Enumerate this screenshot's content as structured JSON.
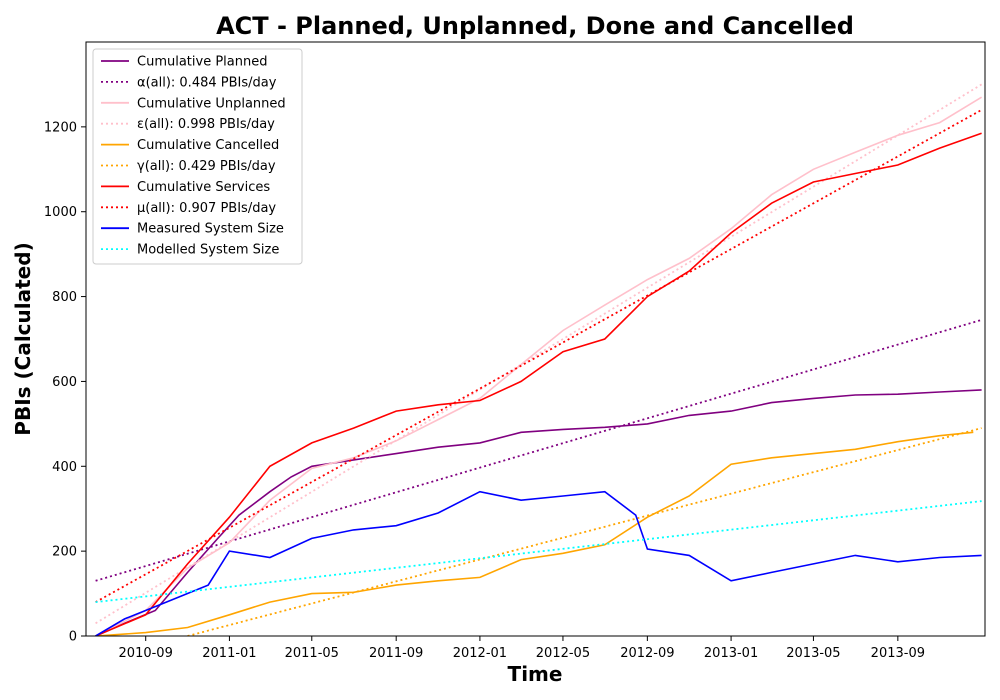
{
  "chart_data": {
    "type": "line",
    "title": "ACT - Planned, Unplanned, Done  and Cancelled",
    "xlabel": "Time",
    "ylabel": "PBIs (Calculated)",
    "x_ticks": [
      "2010-09",
      "2011-01",
      "2011-05",
      "2011-09",
      "2012-01",
      "2012-05",
      "2012-09",
      "2013-01",
      "2013-05",
      "2013-09"
    ],
    "x_tick_values": [
      "2010-09-01",
      "2011-01-01",
      "2011-05-01",
      "2011-09-01",
      "2012-01-01",
      "2012-05-01",
      "2012-09-01",
      "2013-01-01",
      "2013-05-01",
      "2013-09-01"
    ],
    "xlim": [
      "2010-06-06",
      "2014-01-06"
    ],
    "y_ticks": [
      "0",
      "200",
      "400",
      "600",
      "800",
      "1000",
      "1200"
    ],
    "y_tick_values": [
      0,
      200,
      400,
      600,
      800,
      1000,
      1200
    ],
    "ylim": [
      0,
      1400
    ],
    "grid": false,
    "legend_position": "top-left",
    "series": [
      {
        "name": "Cumulative Planned",
        "color": "#800080",
        "style": "solid",
        "x": [
          "2010-06-20",
          "2010-08-01",
          "2010-09-15",
          "2010-11-01",
          "2010-12-15",
          "2011-01-15",
          "2011-03-01",
          "2011-04-01",
          "2011-05-01",
          "2011-07-01",
          "2011-09-01",
          "2011-11-01",
          "2012-01-01",
          "2012-03-01",
          "2012-05-01",
          "2012-07-01",
          "2012-09-01",
          "2012-11-01",
          "2013-01-01",
          "2013-03-01",
          "2013-05-01",
          "2013-07-01",
          "2013-09-01",
          "2013-11-01",
          "2014-01-01"
        ],
        "y": [
          0,
          30,
          60,
          150,
          230,
          285,
          340,
          375,
          400,
          415,
          430,
          445,
          455,
          480,
          487,
          492,
          500,
          520,
          530,
          550,
          560,
          568,
          570,
          575,
          580
        ]
      },
      {
        "name": "α(all): 0.484 PBIs/day",
        "color": "#800080",
        "style": "dotted",
        "x": [
          "2010-06-20",
          "2014-01-01"
        ],
        "y": [
          130,
          745
        ]
      },
      {
        "name": "Cumulative Unplanned",
        "color": "#ffc0cb",
        "style": "solid",
        "x": [
          "2010-06-20",
          "2010-09-01",
          "2010-11-01",
          "2011-01-01",
          "2011-03-01",
          "2011-05-01",
          "2011-07-01",
          "2011-09-01",
          "2011-11-01",
          "2012-01-01",
          "2012-03-01",
          "2012-05-01",
          "2012-07-01",
          "2012-09-01",
          "2012-11-01",
          "2013-01-01",
          "2013-03-01",
          "2013-05-01",
          "2013-07-01",
          "2013-09-01",
          "2013-11-01",
          "2014-01-01"
        ],
        "y": [
          0,
          60,
          160,
          220,
          320,
          395,
          420,
          460,
          510,
          560,
          640,
          720,
          780,
          840,
          890,
          960,
          1040,
          1100,
          1140,
          1180,
          1210,
          1270
        ]
      },
      {
        "name": "ε(all): 0.998 PBIs/day",
        "color": "#ffc0cb",
        "style": "dotted",
        "x": [
          "2010-06-20",
          "2014-01-01"
        ],
        "y": [
          30,
          1300
        ]
      },
      {
        "name": "Cumulative Cancelled",
        "color": "#ffa500",
        "style": "solid",
        "x": [
          "2010-06-20",
          "2010-09-01",
          "2010-11-01",
          "2011-01-01",
          "2011-03-01",
          "2011-05-01",
          "2011-07-01",
          "2011-09-01",
          "2011-11-01",
          "2012-01-01",
          "2012-03-01",
          "2012-05-01",
          "2012-07-01",
          "2012-09-01",
          "2012-11-01",
          "2013-01-01",
          "2013-03-01",
          "2013-05-01",
          "2013-07-01",
          "2013-09-01",
          "2013-11-01",
          "2013-12-20"
        ],
        "y": [
          0,
          8,
          20,
          50,
          80,
          100,
          103,
          120,
          130,
          138,
          180,
          195,
          215,
          280,
          330,
          405,
          420,
          430,
          440,
          458,
          472,
          480
        ]
      },
      {
        "name": "γ(all): 0.429 PBIs/day",
        "color": "#ffa500",
        "style": "dotted",
        "x": [
          "2010-11-01",
          "2014-01-01"
        ],
        "y": [
          0,
          490
        ]
      },
      {
        "name": "Cumulative Services",
        "color": "#ff0000",
        "style": "solid",
        "x": [
          "2010-06-20",
          "2010-09-01",
          "2010-11-01",
          "2011-01-01",
          "2011-03-01",
          "2011-05-01",
          "2011-07-01",
          "2011-09-01",
          "2011-11-01",
          "2012-01-01",
          "2012-03-01",
          "2012-05-01",
          "2012-07-01",
          "2012-09-01",
          "2012-11-01",
          "2013-01-01",
          "2013-03-01",
          "2013-05-01",
          "2013-07-01",
          "2013-09-01",
          "2013-11-01",
          "2014-01-01"
        ],
        "y": [
          0,
          50,
          170,
          280,
          400,
          455,
          490,
          530,
          545,
          555,
          600,
          670,
          700,
          800,
          860,
          950,
          1020,
          1070,
          1090,
          1110,
          1150,
          1185
        ]
      },
      {
        "name": "μ(all): 0.907 PBIs/day",
        "color": "#ff0000",
        "style": "dotted",
        "x": [
          "2010-06-20",
          "2014-01-01"
        ],
        "y": [
          80,
          1240
        ]
      },
      {
        "name": "Measured System Size",
        "color": "#0000ff",
        "style": "solid",
        "x": [
          "2010-06-20",
          "2010-08-01",
          "2010-10-01",
          "2010-12-01",
          "2011-01-01",
          "2011-03-01",
          "2011-05-01",
          "2011-07-01",
          "2011-09-01",
          "2011-11-01",
          "2012-01-01",
          "2012-03-01",
          "2012-05-01",
          "2012-07-01",
          "2012-08-15",
          "2012-09-01",
          "2012-11-01",
          "2013-01-01",
          "2013-03-01",
          "2013-05-01",
          "2013-07-01",
          "2013-09-01",
          "2013-11-01",
          "2014-01-01"
        ],
        "y": [
          0,
          40,
          80,
          120,
          200,
          185,
          230,
          250,
          260,
          290,
          340,
          320,
          330,
          340,
          285,
          205,
          190,
          130,
          150,
          170,
          190,
          175,
          185,
          190
        ]
      },
      {
        "name": "Modelled System Size",
        "color": "#00ffff",
        "style": "dotted",
        "x": [
          "2010-06-20",
          "2014-01-01"
        ],
        "y": [
          80,
          318
        ]
      }
    ]
  }
}
